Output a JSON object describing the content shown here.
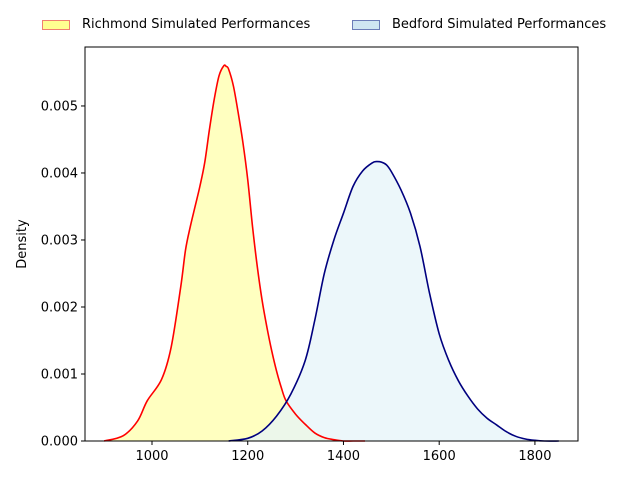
{
  "chart_data": {
    "type": "area",
    "title": "",
    "xlabel": "",
    "ylabel": "Density",
    "xlim": [
      860,
      1890
    ],
    "ylim": [
      0,
      0.00588
    ],
    "xticks": [
      1000,
      1200,
      1400,
      1600,
      1800
    ],
    "xtick_labels": [
      "1000",
      "1200",
      "1400",
      "1600",
      "1800"
    ],
    "yticks": [
      0,
      0.001,
      0.002,
      0.003,
      0.004,
      0.005
    ],
    "ytick_labels": [
      "0.000",
      "0.001",
      "0.002",
      "0.003",
      "0.004",
      "0.005"
    ],
    "grid": false,
    "legend_position": "top-center",
    "series": [
      {
        "name": "Richmond Simulated Performances",
        "line_color": "#ff0000",
        "fill_color": "#ffffc0",
        "legend_fill": "#ffff90",
        "legend_edge": "#f08070",
        "x": [
          900,
          940,
          970,
          990,
          1020,
          1040,
          1060,
          1070,
          1080,
          1090,
          1100,
          1110,
          1120,
          1130,
          1140,
          1150,
          1155,
          1160,
          1170,
          1180,
          1190,
          1200,
          1210,
          1220,
          1230,
          1240,
          1250,
          1260,
          1270,
          1280,
          1300,
          1320,
          1340,
          1360,
          1380,
          1400,
          1420,
          1445
        ],
        "y": [
          0.0,
          8e-05,
          0.0003,
          0.0006,
          0.00092,
          0.0014,
          0.0023,
          0.00285,
          0.0032,
          0.0035,
          0.0038,
          0.00415,
          0.00465,
          0.0051,
          0.00545,
          0.0056,
          0.00559,
          0.00555,
          0.0053,
          0.0049,
          0.00445,
          0.0039,
          0.0032,
          0.0026,
          0.0021,
          0.0017,
          0.00135,
          0.00105,
          0.0008,
          0.0006,
          0.0004,
          0.00025,
          0.00012,
          5e-05,
          2e-05,
          0.0,
          0.0,
          0.0
        ]
      },
      {
        "name": "Bedford Simulated Performances",
        "line_color": "#00007f",
        "fill_color": "#e6f4f8",
        "legend_fill": "#cfe5f2",
        "legend_edge": "#6c7cb8",
        "x": [
          1160,
          1200,
          1230,
          1260,
          1290,
          1320,
          1340,
          1360,
          1380,
          1400,
          1420,
          1440,
          1460,
          1470,
          1480,
          1490,
          1500,
          1520,
          1540,
          1560,
          1580,
          1600,
          1620,
          1640,
          1660,
          1680,
          1700,
          1720,
          1740,
          1760,
          1780,
          1800,
          1820,
          1850
        ],
        "y": [
          0.0,
          4e-05,
          0.00015,
          0.00037,
          0.0007,
          0.0012,
          0.0018,
          0.0025,
          0.003,
          0.0034,
          0.0038,
          0.00403,
          0.00415,
          0.00417,
          0.00416,
          0.00412,
          0.00402,
          0.00375,
          0.0034,
          0.0029,
          0.0022,
          0.0016,
          0.0012,
          0.0009,
          0.00067,
          0.00048,
          0.00034,
          0.00024,
          0.00014,
          7e-05,
          3e-05,
          1e-05,
          0.0,
          0.0
        ]
      }
    ]
  }
}
